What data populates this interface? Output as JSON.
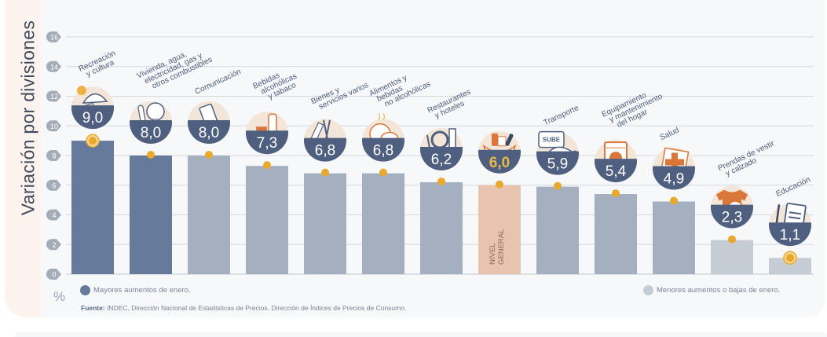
{
  "chart_data": {
    "type": "bar",
    "title": "",
    "ylabel": "Variación por divisiones",
    "yunit": "%",
    "ylim": [
      0,
      16
    ],
    "yticks": [
      0,
      2,
      4,
      6,
      8,
      10,
      12,
      14,
      16
    ],
    "grid": true,
    "categories": [
      [
        "Recreación",
        "y cultura"
      ],
      [
        "Vivienda, agua,",
        "electricidad, gas y",
        "otros combustibles"
      ],
      [
        "Comunicación"
      ],
      [
        "Bebidas",
        "alcohólicas",
        "y tabaco"
      ],
      [
        "Bienes y",
        "servicios varios"
      ],
      [
        "Alimentos y",
        "bebidas",
        "no alcohólicas"
      ],
      [
        "Restaurantes",
        "y hoteles"
      ],
      [
        ""
      ],
      [
        "Transporte"
      ],
      [
        "Equipamiento",
        "y mantenimiento",
        "del hogar"
      ],
      [
        "Salud"
      ],
      [
        "Prendas de vestir",
        "y calzado"
      ],
      [
        "Educación"
      ]
    ],
    "values": [
      9.0,
      8.0,
      8.0,
      7.3,
      6.8,
      6.8,
      6.2,
      6.0,
      5.9,
      5.4,
      4.9,
      2.3,
      1.1
    ],
    "value_labels": [
      "9,0",
      "8,0",
      "8,0",
      "7,3",
      "6,8",
      "6,8",
      "6,2",
      "6,0",
      "5,9",
      "5,4",
      "4,9",
      "2,3",
      "1,1"
    ],
    "groups": [
      "high",
      "high",
      "mid",
      "mid",
      "mid",
      "mid",
      "mid",
      "general",
      "mid",
      "mid",
      "mid",
      "low",
      "low"
    ],
    "icons": [
      "beach-umbrella-icon",
      "lightbulb-key-icon",
      "smartphone-icon",
      "wine-cigarette-icon",
      "comb-scissors-icon",
      "roast-chicken-icon",
      "plate-cutlery-icon",
      "shopping-bag-icon",
      "sube-card-car-icon",
      "washing-machine-icon",
      "medical-cross-icon",
      "tshirt-shoe-icon",
      "notebook-pencil-icon"
    ],
    "highlighted_markers": [
      0,
      12
    ],
    "general_level_label": [
      "NIVEL",
      "GENERAL"
    ],
    "legend": [
      {
        "label": "Mayores aumentos de enero.",
        "group": "high",
        "position": "bottom-left"
      },
      {
        "label": "Menores aumentos o bajas de enero.",
        "group": "low",
        "position": "bottom-right"
      }
    ]
  },
  "colors": {
    "high": "#667a9c",
    "mid": "#a4b0c0",
    "low": "#c5ccd4",
    "general": "#e8c3ae",
    "badge": "#4f5f80",
    "badge_text": "#ffffff",
    "general_badge_text": "#e6b94a",
    "marker": "#eaa92b",
    "icon_accent": "#d9773b",
    "icon_bg": "#f3e6d8",
    "tick_bubble": "#a4acb8",
    "grid": "#d4d8de"
  },
  "source": {
    "label": "Fuente:",
    "text": " INDEC, Dirección Nacional de Estadísticas de Precios. Dirección de Índices de Precios de Consumo."
  }
}
